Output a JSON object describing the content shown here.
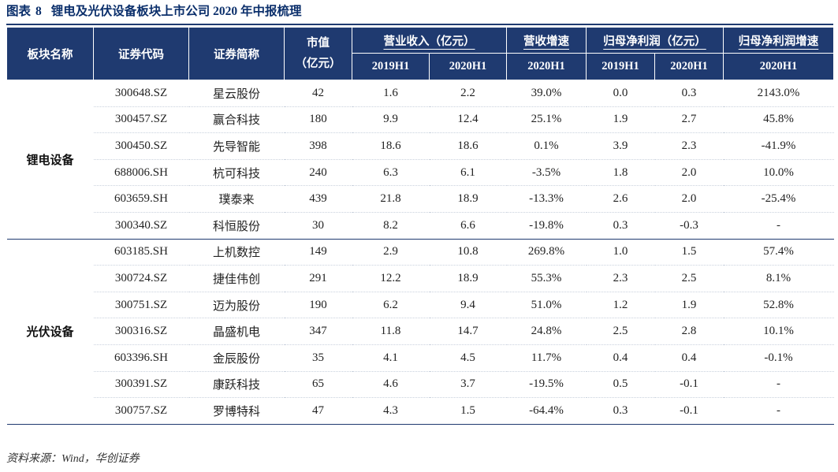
{
  "title": {
    "prefix": "图表",
    "number": "8",
    "text": "锂电及光伏设备板块上市公司 2020 年中报梳理"
  },
  "headers": {
    "sector": "板块名称",
    "code": "证券代码",
    "name": "证券简称",
    "mcap_1": "市值",
    "mcap_2": "（亿元）",
    "revenue": "营业收入（亿元）",
    "rev_growth": "营收增速",
    "profit": "归母净利润（亿元）",
    "profit_growth": "归母净利润增速",
    "y2019": "2019H1",
    "y2020": "2020H1",
    "g2020": "2020H1",
    "p2019": "2019H1",
    "p2020": "2020H1",
    "pg2020": "2020H1"
  },
  "sectors": [
    {
      "label": "锂电设备",
      "rows": [
        {
          "code": "300648.SZ",
          "name": "星云股份",
          "mcap": "42",
          "rev19": "1.6",
          "rev20": "2.2",
          "revg": "39.0%",
          "np19": "0.0",
          "np20": "0.3",
          "npg": "2143.0%"
        },
        {
          "code": "300457.SZ",
          "name": "赢合科技",
          "mcap": "180",
          "rev19": "9.9",
          "rev20": "12.4",
          "revg": "25.1%",
          "np19": "1.9",
          "np20": "2.7",
          "npg": "45.8%"
        },
        {
          "code": "300450.SZ",
          "name": "先导智能",
          "mcap": "398",
          "rev19": "18.6",
          "rev20": "18.6",
          "revg": "0.1%",
          "np19": "3.9",
          "np20": "2.3",
          "npg": "-41.9%"
        },
        {
          "code": "688006.SH",
          "name": "杭可科技",
          "mcap": "240",
          "rev19": "6.3",
          "rev20": "6.1",
          "revg": "-3.5%",
          "np19": "1.8",
          "np20": "2.0",
          "npg": "10.0%"
        },
        {
          "code": "603659.SH",
          "name": "璞泰来",
          "mcap": "439",
          "rev19": "21.8",
          "rev20": "18.9",
          "revg": "-13.3%",
          "np19": "2.6",
          "np20": "2.0",
          "npg": "-25.4%"
        },
        {
          "code": "300340.SZ",
          "name": "科恒股份",
          "mcap": "30",
          "rev19": "8.2",
          "rev20": "6.6",
          "revg": "-19.8%",
          "np19": "0.3",
          "np20": "-0.3",
          "npg": "-"
        }
      ]
    },
    {
      "label": "光伏设备",
      "rows": [
        {
          "code": "603185.SH",
          "name": "上机数控",
          "mcap": "149",
          "rev19": "2.9",
          "rev20": "10.8",
          "revg": "269.8%",
          "np19": "1.0",
          "np20": "1.5",
          "npg": "57.4%"
        },
        {
          "code": "300724.SZ",
          "name": "捷佳伟创",
          "mcap": "291",
          "rev19": "12.2",
          "rev20": "18.9",
          "revg": "55.3%",
          "np19": "2.3",
          "np20": "2.5",
          "npg": "8.1%"
        },
        {
          "code": "300751.SZ",
          "name": "迈为股份",
          "mcap": "190",
          "rev19": "6.2",
          "rev20": "9.4",
          "revg": "51.0%",
          "np19": "1.2",
          "np20": "1.9",
          "npg": "52.8%"
        },
        {
          "code": "300316.SZ",
          "name": "晶盛机电",
          "mcap": "347",
          "rev19": "11.8",
          "rev20": "14.7",
          "revg": "24.8%",
          "np19": "2.5",
          "np20": "2.8",
          "npg": "10.1%"
        },
        {
          "code": "603396.SH",
          "name": "金辰股份",
          "mcap": "35",
          "rev19": "4.1",
          "rev20": "4.5",
          "revg": "11.7%",
          "np19": "0.4",
          "np20": "0.4",
          "npg": "-0.1%"
        },
        {
          "code": "300391.SZ",
          "name": "康跃科技",
          "mcap": "65",
          "rev19": "4.6",
          "rev20": "3.7",
          "revg": "-19.5%",
          "np19": "0.5",
          "np20": "-0.1",
          "npg": "-"
        },
        {
          "code": "300757.SZ",
          "name": "罗博特科",
          "mcap": "47",
          "rev19": "4.3",
          "rev20": "1.5",
          "revg": "-64.4%",
          "np19": "0.3",
          "np20": "-0.1",
          "npg": "-"
        }
      ]
    }
  ],
  "source": "资料来源：Wind，华创证券",
  "colors": {
    "header_bg": "#1f3a70",
    "title": "#0b2f6b"
  }
}
